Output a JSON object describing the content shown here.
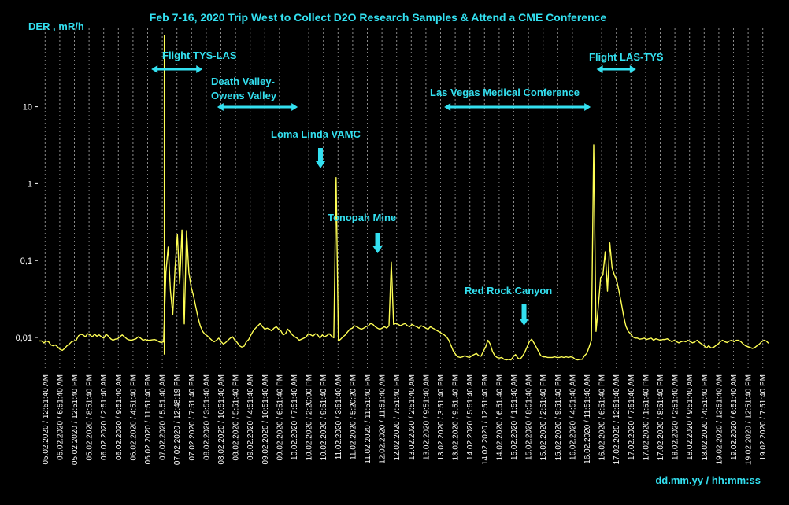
{
  "chart_data": {
    "type": "line",
    "title": "Feb 7-16, 2020 Trip West to Collect D2O Research Samples & Attend a CME Conference",
    "ylabel": "DER , mR/h",
    "xlabel": "dd.mm.yy / hh:mm:ss",
    "y_scale": "log",
    "ylim": [
      0.0045,
      100
    ],
    "y_ticks": [
      "0,01",
      "0,1",
      "1",
      "10"
    ],
    "y_tick_values": [
      0.01,
      0.1,
      1,
      10
    ],
    "grid": "vertical dotted",
    "colors": {
      "background": "#000000",
      "line": "#ffff55",
      "annotation": "#33e0f0",
      "grid": "#8a8a8a"
    },
    "x_ticks": [
      "05.02.2020 / 12:51:40 AM",
      "05.02.2020 / 6:51:40 AM",
      "05.02.2020 / 12:51:40 PM",
      "05.02.2020 / 8:51:40 PM",
      "06.02.2020 / 2:51:40 AM",
      "06.02.2020 / 9:51:40 AM",
      "06.02.2020 / 4:51:40 PM",
      "06.02.2020 / 11:51:40 PM",
      "07.02.2020 / 5:51:40 AM",
      "07.02.2020 / 12:48:19 PM",
      "07.02.2020 / 7:51:40 PM",
      "08.02.2020 / 3:51:40 AM",
      "08.02.2020 / 10:51:40 AM",
      "08.02.2020 / 5:51:40 PM",
      "09.02.2020 / 4:51:40 AM",
      "09.02.2020 / 10:51:40 AM",
      "09.02.2020 / 6:51:40 PM",
      "10.02.2020 / 7:51:40 AM",
      "10.02.2020 / 2:20:00 PM",
      "10.02.2020 / 9:51:40 PM",
      "11.02.2020 / 3:51:40 AM",
      "11.02.2020 / 5:20:20 PM",
      "11.02.2020 / 11:51:40 PM",
      "12.02.2020 / 11:51:40 AM",
      "12.02.2020 / 7:51:40 PM",
      "13.02.2020 / 2:51:40 AM",
      "13.02.2020 / 9:51:40 AM",
      "13.02.2020 / 3:51:40 PM",
      "13.02.2020 / 9:51:40 PM",
      "14.02.2020 / 5:51:40 AM",
      "14.02.2020 / 12:51:40 PM",
      "14.02.2020 / 6:51:40 PM",
      "15.02.2020 / 1:51:40 AM",
      "15.02.2020 / 8:51:40 AM",
      "15.02.2020 / 2:51:40 PM",
      "15.02.2020 / 9:51:40 PM",
      "16.02.2020 / 4:51:40 AM",
      "16.02.2020 / 11:51:40 AM",
      "16.02.2020 / 6:51:40 PM",
      "17.02.2020 / 12:51:40 AM",
      "17.02.2020 / 7:51:40 AM",
      "17.02.2020 / 1:51:40 PM",
      "17.02.2020 / 8:51:40 PM",
      "18.02.2020 / 2:51:40 AM",
      "18.02.2020 / 9:51:40 AM",
      "18.02.2020 / 4:51:40 PM",
      "19.02.2020 / 12:51:40 AM",
      "19.02.2020 / 6:51:40 AM",
      "19.02.2020 / 12:51:40 PM",
      "19.02.2020 / 7:51:40 PM"
    ],
    "series": [
      {
        "values": [
          0.009,
          0.009,
          0.0085,
          0.009,
          0.0088,
          0.008,
          0.0078,
          0.008,
          0.0075,
          0.007,
          0.0068,
          0.0072,
          0.0078,
          0.0082,
          0.0088,
          0.009,
          0.0092,
          0.0105,
          0.011,
          0.0108,
          0.0102,
          0.0112,
          0.0108,
          0.0102,
          0.011,
          0.0104,
          0.0108,
          0.0102,
          0.0098,
          0.011,
          0.0104,
          0.0096,
          0.0092,
          0.0095,
          0.0096,
          0.0102,
          0.0108,
          0.0102,
          0.0096,
          0.0093,
          0.0092,
          0.0094,
          0.0096,
          0.0102,
          0.0098,
          0.0092,
          0.0094,
          0.0092,
          0.0092,
          0.0093,
          0.0094,
          0.0092,
          0.0088,
          0.0086,
          0.0088,
          0.07,
          0.15,
          0.04,
          0.02,
          0.08,
          0.22,
          0.05,
          0.25,
          0.015,
          0.24,
          0.07,
          0.045,
          0.035,
          0.025,
          0.018,
          0.014,
          0.012,
          0.011,
          0.0105,
          0.0098,
          0.0092,
          0.0088,
          0.0092,
          0.0098,
          0.0088,
          0.0082,
          0.0086,
          0.0092,
          0.0098,
          0.0102,
          0.0092,
          0.0086,
          0.0078,
          0.0075,
          0.0077,
          0.0088,
          0.0094,
          0.0108,
          0.0122,
          0.0132,
          0.0142,
          0.0152,
          0.0138,
          0.0128,
          0.0132,
          0.0128,
          0.0122,
          0.0132,
          0.0138,
          0.0128,
          0.0122,
          0.0108,
          0.0112,
          0.0128,
          0.0118,
          0.0108,
          0.0102,
          0.0098,
          0.0092,
          0.0095,
          0.0098,
          0.0102,
          0.0112,
          0.0108,
          0.0104,
          0.0112,
          0.0108,
          0.0098,
          0.0108,
          0.0102,
          0.0106,
          0.0112,
          0.0104,
          0.0099,
          1.2,
          0.009,
          0.0095,
          0.0102,
          0.0108,
          0.0118,
          0.0128,
          0.0132,
          0.0142,
          0.0138,
          0.0132,
          0.0128,
          0.0132,
          0.0138,
          0.0142,
          0.0152,
          0.0148,
          0.0138,
          0.0132,
          0.0128,
          0.0132,
          0.0138,
          0.0132,
          0.0142,
          0.095,
          0.0148,
          0.0152,
          0.0148,
          0.0142,
          0.0148,
          0.0152,
          0.0142,
          0.0138,
          0.0148,
          0.0142,
          0.0138,
          0.0132,
          0.0142,
          0.0138,
          0.0132,
          0.0128,
          0.0138,
          0.0132,
          0.0128,
          0.0122,
          0.0118,
          0.0112,
          0.0108,
          0.0102,
          0.0092,
          0.0078,
          0.0066,
          0.006,
          0.0056,
          0.0055,
          0.0056,
          0.0058,
          0.0056,
          0.0055,
          0.0058,
          0.006,
          0.0062,
          0.0058,
          0.0057,
          0.0066,
          0.0075,
          0.0092,
          0.0082,
          0.0066,
          0.0058,
          0.0055,
          0.0054,
          0.0055,
          0.0052,
          0.0051,
          0.0052,
          0.0051,
          0.0056,
          0.006,
          0.0054,
          0.0052,
          0.0057,
          0.0064,
          0.0075,
          0.0088,
          0.0095,
          0.0085,
          0.0075,
          0.0066,
          0.0058,
          0.0056,
          0.0056,
          0.0055,
          0.0055,
          0.0055,
          0.0056,
          0.0055,
          0.0055,
          0.0056,
          0.0055,
          0.0056,
          0.0055,
          0.0056,
          0.0055,
          0.0052,
          0.0051,
          0.0052,
          0.0052,
          0.0058,
          0.0062,
          0.0075,
          0.0092,
          3.2,
          0.012,
          0.025,
          0.06,
          0.065,
          0.13,
          0.04,
          0.17,
          0.08,
          0.065,
          0.055,
          0.04,
          0.028,
          0.019,
          0.014,
          0.012,
          0.0112,
          0.0102,
          0.0098,
          0.0098,
          0.0095,
          0.0096,
          0.0098,
          0.0094,
          0.0096,
          0.0098,
          0.0092,
          0.0096,
          0.0094,
          0.0092,
          0.0094,
          0.0094,
          0.0096,
          0.0092,
          0.0088,
          0.0092,
          0.0088,
          0.0085,
          0.0088,
          0.009,
          0.0088,
          0.0092,
          0.0088,
          0.0085,
          0.0088,
          0.0092,
          0.0086,
          0.0082,
          0.0078,
          0.0073,
          0.0078,
          0.0073,
          0.0074,
          0.0078,
          0.0082,
          0.0088,
          0.0092,
          0.0088,
          0.0086,
          0.009,
          0.0092,
          0.0088,
          0.0092,
          0.0092,
          0.0088,
          0.0082,
          0.0078,
          0.0076,
          0.0074,
          0.0072,
          0.0074,
          0.0078,
          0.0082,
          0.0088,
          0.0092,
          0.009,
          0.0084
        ]
      }
    ],
    "annotations": [
      {
        "text": "Flight TYS-LAS",
        "kind": "span",
        "x_from": 0.155,
        "x_to": 0.225,
        "y": 60
      },
      {
        "text": "Death Valley-",
        "kind": "span-label",
        "x_from": 0.245,
        "x_to": 0.355,
        "y": 9.7
      },
      {
        "text": "Owens Valley",
        "kind": "label2"
      },
      {
        "text": "Loma Linda VAMC",
        "kind": "arrow",
        "x": 0.386,
        "y": 1.45
      },
      {
        "text": "Tonopah Mine",
        "kind": "arrow",
        "x": 0.464,
        "y": 0.13
      },
      {
        "text": "Las Vegas Medical Conference",
        "kind": "span",
        "x_from": 0.555,
        "x_to": 0.755,
        "y": 9.7
      },
      {
        "text": "Red Rock Canyon",
        "kind": "arrow",
        "x": 0.664,
        "y": 0.019
      },
      {
        "text": "Flight LAS-TYS",
        "kind": "span",
        "x_from": 0.763,
        "x_to": 0.817,
        "y": 60
      }
    ]
  }
}
